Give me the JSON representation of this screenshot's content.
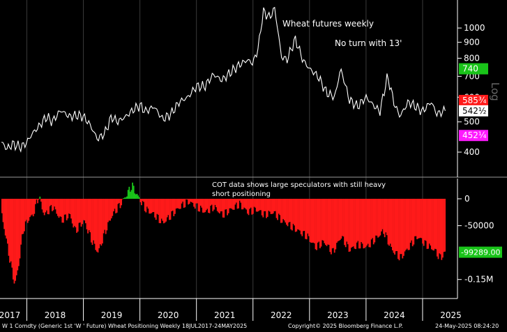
{
  "chart_data": [
    {
      "type": "line",
      "title": "Wheat futures weekly",
      "annotation": "No turn with 13'",
      "scale": "log",
      "scale_label": "Log",
      "ylim": [
        350,
        1180
      ],
      "yticks": [
        400,
        500,
        600,
        700,
        800,
        900,
        1000
      ],
      "price_tags": [
        {
          "label": "740",
          "value": 740,
          "color": "#19c419",
          "text_color": "#ffffff"
        },
        {
          "label": "585¾",
          "value": 585.75,
          "color": "#ff1a1a",
          "text_color": "#ffffff"
        },
        {
          "label": "542½",
          "value": 542.5,
          "color": "#ffffff",
          "text_color": "#000000"
        },
        {
          "label": "452¼",
          "value": 452.25,
          "color": "#ff1aff",
          "text_color": "#ffffff"
        }
      ],
      "series": [
        {
          "values": [
            {
              "t": 2017.55,
              "v": 430
            },
            {
              "t": 2017.65,
              "v": 410
            },
            {
              "t": 2017.75,
              "v": 425
            },
            {
              "t": 2017.9,
              "v": 415
            },
            {
              "t": 2018.0,
              "v": 430
            },
            {
              "t": 2018.1,
              "v": 460
            },
            {
              "t": 2018.2,
              "v": 480
            },
            {
              "t": 2018.35,
              "v": 520
            },
            {
              "t": 2018.45,
              "v": 500
            },
            {
              "t": 2018.6,
              "v": 545
            },
            {
              "t": 2018.75,
              "v": 520
            },
            {
              "t": 2018.9,
              "v": 525
            },
            {
              "t": 2019.0,
              "v": 520
            },
            {
              "t": 2019.1,
              "v": 495
            },
            {
              "t": 2019.25,
              "v": 440
            },
            {
              "t": 2019.38,
              "v": 460
            },
            {
              "t": 2019.5,
              "v": 520
            },
            {
              "t": 2019.6,
              "v": 500
            },
            {
              "t": 2019.75,
              "v": 520
            },
            {
              "t": 2019.9,
              "v": 550
            },
            {
              "t": 2020.0,
              "v": 565
            },
            {
              "t": 2020.1,
              "v": 540
            },
            {
              "t": 2020.25,
              "v": 560
            },
            {
              "t": 2020.4,
              "v": 510
            },
            {
              "t": 2020.55,
              "v": 530
            },
            {
              "t": 2020.7,
              "v": 580
            },
            {
              "t": 2020.85,
              "v": 600
            },
            {
              "t": 2021.0,
              "v": 650
            },
            {
              "t": 2021.15,
              "v": 650
            },
            {
              "t": 2021.3,
              "v": 710
            },
            {
              "t": 2021.45,
              "v": 680
            },
            {
              "t": 2021.6,
              "v": 720
            },
            {
              "t": 2021.75,
              "v": 760
            },
            {
              "t": 2021.9,
              "v": 790
            },
            {
              "t": 2022.0,
              "v": 770
            },
            {
              "t": 2022.1,
              "v": 870
            },
            {
              "t": 2022.18,
              "v": 1130
            },
            {
              "t": 2022.3,
              "v": 1080
            },
            {
              "t": 2022.38,
              "v": 1160
            },
            {
              "t": 2022.5,
              "v": 810
            },
            {
              "t": 2022.6,
              "v": 790
            },
            {
              "t": 2022.75,
              "v": 920
            },
            {
              "t": 2022.88,
              "v": 790
            },
            {
              "t": 2023.0,
              "v": 740
            },
            {
              "t": 2023.15,
              "v": 700
            },
            {
              "t": 2023.3,
              "v": 620
            },
            {
              "t": 2023.45,
              "v": 600
            },
            {
              "t": 2023.55,
              "v": 740
            },
            {
              "t": 2023.7,
              "v": 590
            },
            {
              "t": 2023.85,
              "v": 560
            },
            {
              "t": 2024.0,
              "v": 600
            },
            {
              "t": 2024.15,
              "v": 560
            },
            {
              "t": 2024.25,
              "v": 540
            },
            {
              "t": 2024.38,
              "v": 700
            },
            {
              "t": 2024.5,
              "v": 570
            },
            {
              "t": 2024.6,
              "v": 520
            },
            {
              "t": 2024.75,
              "v": 580
            },
            {
              "t": 2024.88,
              "v": 560
            },
            {
              "t": 2025.0,
              "v": 540
            },
            {
              "t": 2025.15,
              "v": 580
            },
            {
              "t": 2025.25,
              "v": 530
            },
            {
              "t": 2025.4,
              "v": 542.5
            }
          ]
        }
      ]
    },
    {
      "type": "area",
      "annotation": "COT data shows large speculators with still heavy short positioning",
      "ylim": [
        -175000,
        35000
      ],
      "yticks": [
        {
          "value": 0,
          "label": "0"
        },
        {
          "value": -50000,
          "label": "-50000"
        },
        {
          "value": -150000,
          "label": "-0.15M"
        }
      ],
      "last_tag": {
        "label": "-99289.00",
        "value": -99289,
        "color": "#19c419"
      },
      "colors": {
        "positive": "#19c419",
        "negative": "#ff1a1a"
      },
      "series": [
        {
          "values": [
            {
              "t": 2017.55,
              "v": -30000
            },
            {
              "t": 2017.65,
              "v": -90000
            },
            {
              "t": 2017.72,
              "v": -130000
            },
            {
              "t": 2017.78,
              "v": -160000
            },
            {
              "t": 2017.85,
              "v": -120000
            },
            {
              "t": 2017.92,
              "v": -60000
            },
            {
              "t": 2018.0,
              "v": -40000
            },
            {
              "t": 2018.1,
              "v": -30000
            },
            {
              "t": 2018.2,
              "v": 5000
            },
            {
              "t": 2018.3,
              "v": -30000
            },
            {
              "t": 2018.45,
              "v": -15000
            },
            {
              "t": 2018.6,
              "v": -40000
            },
            {
              "t": 2018.75,
              "v": -30000
            },
            {
              "t": 2018.85,
              "v": -60000
            },
            {
              "t": 2019.0,
              "v": -40000
            },
            {
              "t": 2019.15,
              "v": -80000
            },
            {
              "t": 2019.25,
              "v": -100000
            },
            {
              "t": 2019.38,
              "v": -60000
            },
            {
              "t": 2019.5,
              "v": -30000
            },
            {
              "t": 2019.65,
              "v": -10000
            },
            {
              "t": 2019.78,
              "v": 12000
            },
            {
              "t": 2019.85,
              "v": 25000
            },
            {
              "t": 2019.95,
              "v": 5000
            },
            {
              "t": 2020.1,
              "v": -20000
            },
            {
              "t": 2020.25,
              "v": -30000
            },
            {
              "t": 2020.4,
              "v": -45000
            },
            {
              "t": 2020.55,
              "v": -30000
            },
            {
              "t": 2020.7,
              "v": -15000
            },
            {
              "t": 2020.85,
              "v": -5000
            },
            {
              "t": 2021.0,
              "v": -15000
            },
            {
              "t": 2021.15,
              "v": -25000
            },
            {
              "t": 2021.3,
              "v": -15000
            },
            {
              "t": 2021.45,
              "v": -30000
            },
            {
              "t": 2021.6,
              "v": -20000
            },
            {
              "t": 2021.75,
              "v": -10000
            },
            {
              "t": 2021.9,
              "v": -25000
            },
            {
              "t": 2022.05,
              "v": -20000
            },
            {
              "t": 2022.2,
              "v": -30000
            },
            {
              "t": 2022.35,
              "v": -25000
            },
            {
              "t": 2022.5,
              "v": -40000
            },
            {
              "t": 2022.65,
              "v": -50000
            },
            {
              "t": 2022.8,
              "v": -60000
            },
            {
              "t": 2022.95,
              "v": -70000
            },
            {
              "t": 2023.1,
              "v": -90000
            },
            {
              "t": 2023.25,
              "v": -80000
            },
            {
              "t": 2023.4,
              "v": -100000
            },
            {
              "t": 2023.55,
              "v": -70000
            },
            {
              "t": 2023.7,
              "v": -95000
            },
            {
              "t": 2023.85,
              "v": -85000
            },
            {
              "t": 2024.0,
              "v": -90000
            },
            {
              "t": 2024.15,
              "v": -75000
            },
            {
              "t": 2024.3,
              "v": -60000
            },
            {
              "t": 2024.45,
              "v": -95000
            },
            {
              "t": 2024.6,
              "v": -110000
            },
            {
              "t": 2024.75,
              "v": -90000
            },
            {
              "t": 2024.9,
              "v": -70000
            },
            {
              "t": 2025.05,
              "v": -85000
            },
            {
              "t": 2025.2,
              "v": -95000
            },
            {
              "t": 2025.3,
              "v": -110000
            },
            {
              "t": 2025.4,
              "v": -99289
            }
          ]
        }
      ]
    }
  ],
  "x_axis": {
    "start": 2017.55,
    "end": 2025.42,
    "labels": [
      "2017",
      "2018",
      "2019",
      "2020",
      "2021",
      "2022",
      "2023",
      "2024",
      "2025"
    ]
  },
  "footer": {
    "left": "W 1 Comdty (Generic 1st 'W ' Future) Wheat Positioning  Weekly 18JUL2017-24MAY2025",
    "center": "Copyright© 2025 Bloomberg Finance L.P.",
    "right": "24-May-2025 08:24:20"
  }
}
